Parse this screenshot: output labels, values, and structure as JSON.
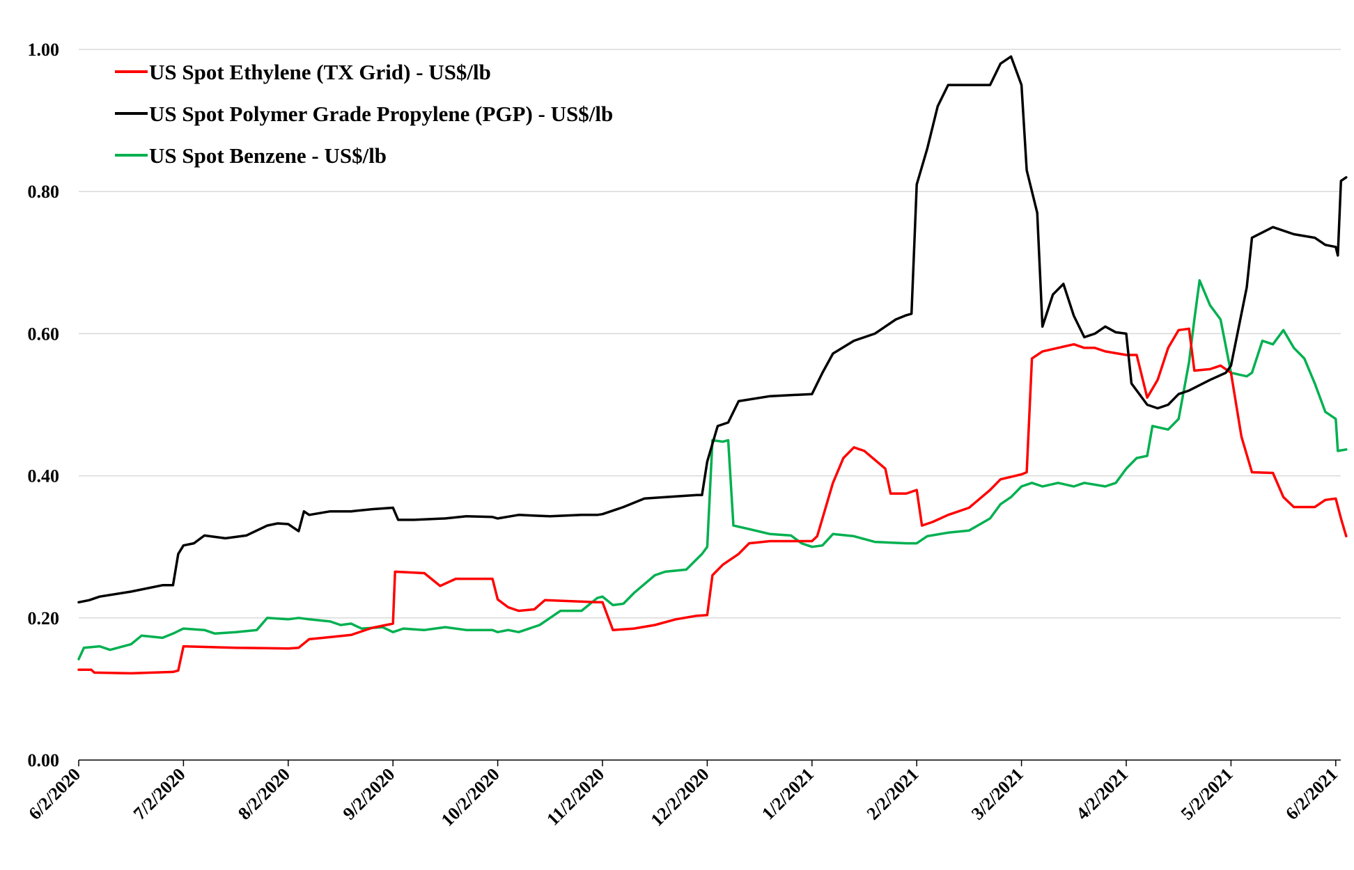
{
  "chart_data": {
    "type": "line",
    "title": "",
    "xlabel": "",
    "ylabel": "",
    "ylim": [
      0,
      1
    ],
    "yticks": [
      "0.00",
      "0.20",
      "0.40",
      "0.60",
      "0.80",
      "1.00"
    ],
    "ytick_values": [
      0,
      0.2,
      0.4,
      0.6,
      0.8,
      1.0
    ],
    "xticks": [
      "6/2/2020",
      "7/2/2020",
      "8/2/2020",
      "9/2/2020",
      "10/2/2020",
      "11/2/2020",
      "12/2/2020",
      "1/2/2021",
      "2/2/2021",
      "3/2/2021",
      "4/2/2021",
      "5/2/2021",
      "6/2/2021"
    ],
    "x_unit": "months since 6/2/2020",
    "xlim": [
      0,
      12.1
    ],
    "grid": true,
    "legend_position": "top-left",
    "series": [
      {
        "name": "US Spot Ethylene (TX Grid) - US$/lb",
        "color": "#ff0000",
        "points": [
          [
            0,
            0.127
          ],
          [
            0.12,
            0.127
          ],
          [
            0.15,
            0.123
          ],
          [
            0.5,
            0.122
          ],
          [
            0.9,
            0.124
          ],
          [
            0.95,
            0.126
          ],
          [
            1.0,
            0.16
          ],
          [
            1.5,
            0.158
          ],
          [
            2.0,
            0.157
          ],
          [
            2.1,
            0.158
          ],
          [
            2.2,
            0.17
          ],
          [
            2.4,
            0.173
          ],
          [
            2.6,
            0.176
          ],
          [
            2.8,
            0.186
          ],
          [
            3.0,
            0.192
          ],
          [
            3.02,
            0.265
          ],
          [
            3.3,
            0.263
          ],
          [
            3.45,
            0.245
          ],
          [
            3.6,
            0.255
          ],
          [
            3.95,
            0.255
          ],
          [
            4.0,
            0.226
          ],
          [
            4.1,
            0.215
          ],
          [
            4.2,
            0.21
          ],
          [
            4.35,
            0.212
          ],
          [
            4.45,
            0.225
          ],
          [
            4.95,
            0.222
          ],
          [
            5.0,
            0.222
          ],
          [
            5.1,
            0.183
          ],
          [
            5.3,
            0.185
          ],
          [
            5.5,
            0.19
          ],
          [
            5.7,
            0.198
          ],
          [
            5.9,
            0.203
          ],
          [
            6.0,
            0.204
          ],
          [
            6.05,
            0.26
          ],
          [
            6.15,
            0.275
          ],
          [
            6.3,
            0.29
          ],
          [
            6.4,
            0.305
          ],
          [
            6.6,
            0.308
          ],
          [
            7.0,
            0.308
          ],
          [
            7.05,
            0.315
          ],
          [
            7.2,
            0.39
          ],
          [
            7.3,
            0.425
          ],
          [
            7.4,
            0.44
          ],
          [
            7.5,
            0.435
          ],
          [
            7.7,
            0.41
          ],
          [
            7.75,
            0.375
          ],
          [
            7.9,
            0.375
          ],
          [
            8.0,
            0.38
          ],
          [
            8.05,
            0.33
          ],
          [
            8.15,
            0.335
          ],
          [
            8.3,
            0.345
          ],
          [
            8.5,
            0.355
          ],
          [
            8.7,
            0.38
          ],
          [
            8.8,
            0.395
          ],
          [
            9.0,
            0.402
          ],
          [
            9.05,
            0.405
          ],
          [
            9.1,
            0.565
          ],
          [
            9.2,
            0.575
          ],
          [
            9.35,
            0.58
          ],
          [
            9.5,
            0.585
          ],
          [
            9.6,
            0.58
          ],
          [
            9.7,
            0.58
          ],
          [
            9.8,
            0.575
          ],
          [
            10.0,
            0.57
          ],
          [
            10.1,
            0.57
          ],
          [
            10.2,
            0.51
          ],
          [
            10.3,
            0.535
          ],
          [
            10.4,
            0.58
          ],
          [
            10.5,
            0.605
          ],
          [
            10.6,
            0.607
          ],
          [
            10.65,
            0.548
          ],
          [
            10.8,
            0.55
          ],
          [
            10.9,
            0.555
          ],
          [
            11.0,
            0.545
          ],
          [
            11.1,
            0.455
          ],
          [
            11.2,
            0.405
          ],
          [
            11.4,
            0.404
          ],
          [
            11.5,
            0.37
          ],
          [
            11.6,
            0.356
          ],
          [
            11.8,
            0.356
          ],
          [
            11.9,
            0.366
          ],
          [
            12.0,
            0.368
          ],
          [
            12.05,
            0.34
          ],
          [
            12.1,
            0.315
          ]
        ]
      },
      {
        "name": "US Spot Polymer Grade Propylene (PGP) - US$/lb",
        "color": "#000000",
        "points": [
          [
            0,
            0.222
          ],
          [
            0.1,
            0.225
          ],
          [
            0.2,
            0.23
          ],
          [
            0.5,
            0.237
          ],
          [
            0.8,
            0.246
          ],
          [
            0.9,
            0.246
          ],
          [
            0.95,
            0.29
          ],
          [
            1.0,
            0.302
          ],
          [
            1.1,
            0.305
          ],
          [
            1.2,
            0.316
          ],
          [
            1.4,
            0.312
          ],
          [
            1.6,
            0.316
          ],
          [
            1.8,
            0.33
          ],
          [
            1.9,
            0.333
          ],
          [
            2.0,
            0.332
          ],
          [
            2.1,
            0.322
          ],
          [
            2.15,
            0.35
          ],
          [
            2.2,
            0.345
          ],
          [
            2.4,
            0.35
          ],
          [
            2.6,
            0.35
          ],
          [
            2.8,
            0.353
          ],
          [
            3.0,
            0.355
          ],
          [
            3.05,
            0.338
          ],
          [
            3.2,
            0.338
          ],
          [
            3.5,
            0.34
          ],
          [
            3.7,
            0.343
          ],
          [
            3.95,
            0.342
          ],
          [
            4.0,
            0.34
          ],
          [
            4.2,
            0.345
          ],
          [
            4.5,
            0.343
          ],
          [
            4.8,
            0.345
          ],
          [
            4.95,
            0.345
          ],
          [
            5.0,
            0.346
          ],
          [
            5.2,
            0.356
          ],
          [
            5.4,
            0.368
          ],
          [
            5.6,
            0.37
          ],
          [
            5.9,
            0.373
          ],
          [
            5.95,
            0.373
          ],
          [
            6.0,
            0.42
          ],
          [
            6.1,
            0.47
          ],
          [
            6.2,
            0.475
          ],
          [
            6.3,
            0.505
          ],
          [
            6.6,
            0.512
          ],
          [
            7.0,
            0.515
          ],
          [
            7.1,
            0.545
          ],
          [
            7.2,
            0.572
          ],
          [
            7.4,
            0.59
          ],
          [
            7.6,
            0.6
          ],
          [
            7.7,
            0.61
          ],
          [
            7.8,
            0.62
          ],
          [
            7.9,
            0.626
          ],
          [
            7.95,
            0.628
          ],
          [
            8.0,
            0.81
          ],
          [
            8.1,
            0.86
          ],
          [
            8.2,
            0.92
          ],
          [
            8.3,
            0.95
          ],
          [
            8.5,
            0.95
          ],
          [
            8.7,
            0.95
          ],
          [
            8.8,
            0.98
          ],
          [
            8.9,
            0.99
          ],
          [
            9.0,
            0.95
          ],
          [
            9.05,
            0.83
          ],
          [
            9.15,
            0.77
          ],
          [
            9.2,
            0.61
          ],
          [
            9.3,
            0.655
          ],
          [
            9.4,
            0.67
          ],
          [
            9.5,
            0.625
          ],
          [
            9.6,
            0.595
          ],
          [
            9.7,
            0.6
          ],
          [
            9.8,
            0.61
          ],
          [
            9.9,
            0.602
          ],
          [
            10.0,
            0.6
          ],
          [
            10.05,
            0.53
          ],
          [
            10.2,
            0.5
          ],
          [
            10.3,
            0.495
          ],
          [
            10.4,
            0.5
          ],
          [
            10.5,
            0.515
          ],
          [
            10.6,
            0.52
          ],
          [
            10.8,
            0.535
          ],
          [
            10.95,
            0.545
          ],
          [
            11.0,
            0.555
          ],
          [
            11.15,
            0.665
          ],
          [
            11.2,
            0.735
          ],
          [
            11.4,
            0.75
          ],
          [
            11.6,
            0.74
          ],
          [
            11.8,
            0.735
          ],
          [
            11.9,
            0.725
          ],
          [
            12.0,
            0.722
          ],
          [
            12.02,
            0.71
          ],
          [
            12.05,
            0.815
          ],
          [
            12.1,
            0.82
          ]
        ]
      },
      {
        "name": "US Spot Benzene - US$/lb",
        "color": "#00b050",
        "points": [
          [
            0,
            0.142
          ],
          [
            0.05,
            0.158
          ],
          [
            0.2,
            0.16
          ],
          [
            0.3,
            0.155
          ],
          [
            0.5,
            0.163
          ],
          [
            0.6,
            0.175
          ],
          [
            0.8,
            0.172
          ],
          [
            0.9,
            0.178
          ],
          [
            1.0,
            0.185
          ],
          [
            1.2,
            0.183
          ],
          [
            1.3,
            0.178
          ],
          [
            1.5,
            0.18
          ],
          [
            1.7,
            0.183
          ],
          [
            1.8,
            0.2
          ],
          [
            2.0,
            0.198
          ],
          [
            2.1,
            0.2
          ],
          [
            2.2,
            0.198
          ],
          [
            2.4,
            0.195
          ],
          [
            2.5,
            0.19
          ],
          [
            2.6,
            0.192
          ],
          [
            2.7,
            0.185
          ],
          [
            2.9,
            0.187
          ],
          [
            3.0,
            0.18
          ],
          [
            3.1,
            0.185
          ],
          [
            3.3,
            0.183
          ],
          [
            3.5,
            0.187
          ],
          [
            3.7,
            0.183
          ],
          [
            3.95,
            0.183
          ],
          [
            4.0,
            0.18
          ],
          [
            4.1,
            0.183
          ],
          [
            4.2,
            0.18
          ],
          [
            4.4,
            0.19
          ],
          [
            4.6,
            0.21
          ],
          [
            4.8,
            0.21
          ],
          [
            4.95,
            0.228
          ],
          [
            5.0,
            0.23
          ],
          [
            5.1,
            0.218
          ],
          [
            5.2,
            0.22
          ],
          [
            5.3,
            0.235
          ],
          [
            5.5,
            0.26
          ],
          [
            5.6,
            0.265
          ],
          [
            5.8,
            0.268
          ],
          [
            5.95,
            0.29
          ],
          [
            6.0,
            0.3
          ],
          [
            6.05,
            0.45
          ],
          [
            6.15,
            0.448
          ],
          [
            6.2,
            0.45
          ],
          [
            6.25,
            0.33
          ],
          [
            6.4,
            0.325
          ],
          [
            6.6,
            0.318
          ],
          [
            6.8,
            0.316
          ],
          [
            6.9,
            0.305
          ],
          [
            7.0,
            0.3
          ],
          [
            7.1,
            0.302
          ],
          [
            7.2,
            0.318
          ],
          [
            7.4,
            0.315
          ],
          [
            7.6,
            0.307
          ],
          [
            7.9,
            0.305
          ],
          [
            8.0,
            0.305
          ],
          [
            8.1,
            0.315
          ],
          [
            8.3,
            0.32
          ],
          [
            8.5,
            0.323
          ],
          [
            8.7,
            0.34
          ],
          [
            8.8,
            0.36
          ],
          [
            8.9,
            0.37
          ],
          [
            9.0,
            0.385
          ],
          [
            9.1,
            0.39
          ],
          [
            9.2,
            0.385
          ],
          [
            9.35,
            0.39
          ],
          [
            9.5,
            0.385
          ],
          [
            9.6,
            0.39
          ],
          [
            9.8,
            0.385
          ],
          [
            9.9,
            0.39
          ],
          [
            10.0,
            0.41
          ],
          [
            10.1,
            0.425
          ],
          [
            10.2,
            0.428
          ],
          [
            10.25,
            0.47
          ],
          [
            10.4,
            0.465
          ],
          [
            10.5,
            0.48
          ],
          [
            10.6,
            0.56
          ],
          [
            10.65,
            0.62
          ],
          [
            10.7,
            0.675
          ],
          [
            10.8,
            0.64
          ],
          [
            10.9,
            0.62
          ],
          [
            11.0,
            0.545
          ],
          [
            11.15,
            0.54
          ],
          [
            11.2,
            0.545
          ],
          [
            11.3,
            0.59
          ],
          [
            11.4,
            0.585
          ],
          [
            11.5,
            0.605
          ],
          [
            11.6,
            0.58
          ],
          [
            11.7,
            0.565
          ],
          [
            11.8,
            0.53
          ],
          [
            11.9,
            0.49
          ],
          [
            12.0,
            0.48
          ],
          [
            12.02,
            0.435
          ],
          [
            12.1,
            0.437
          ]
        ]
      }
    ]
  }
}
